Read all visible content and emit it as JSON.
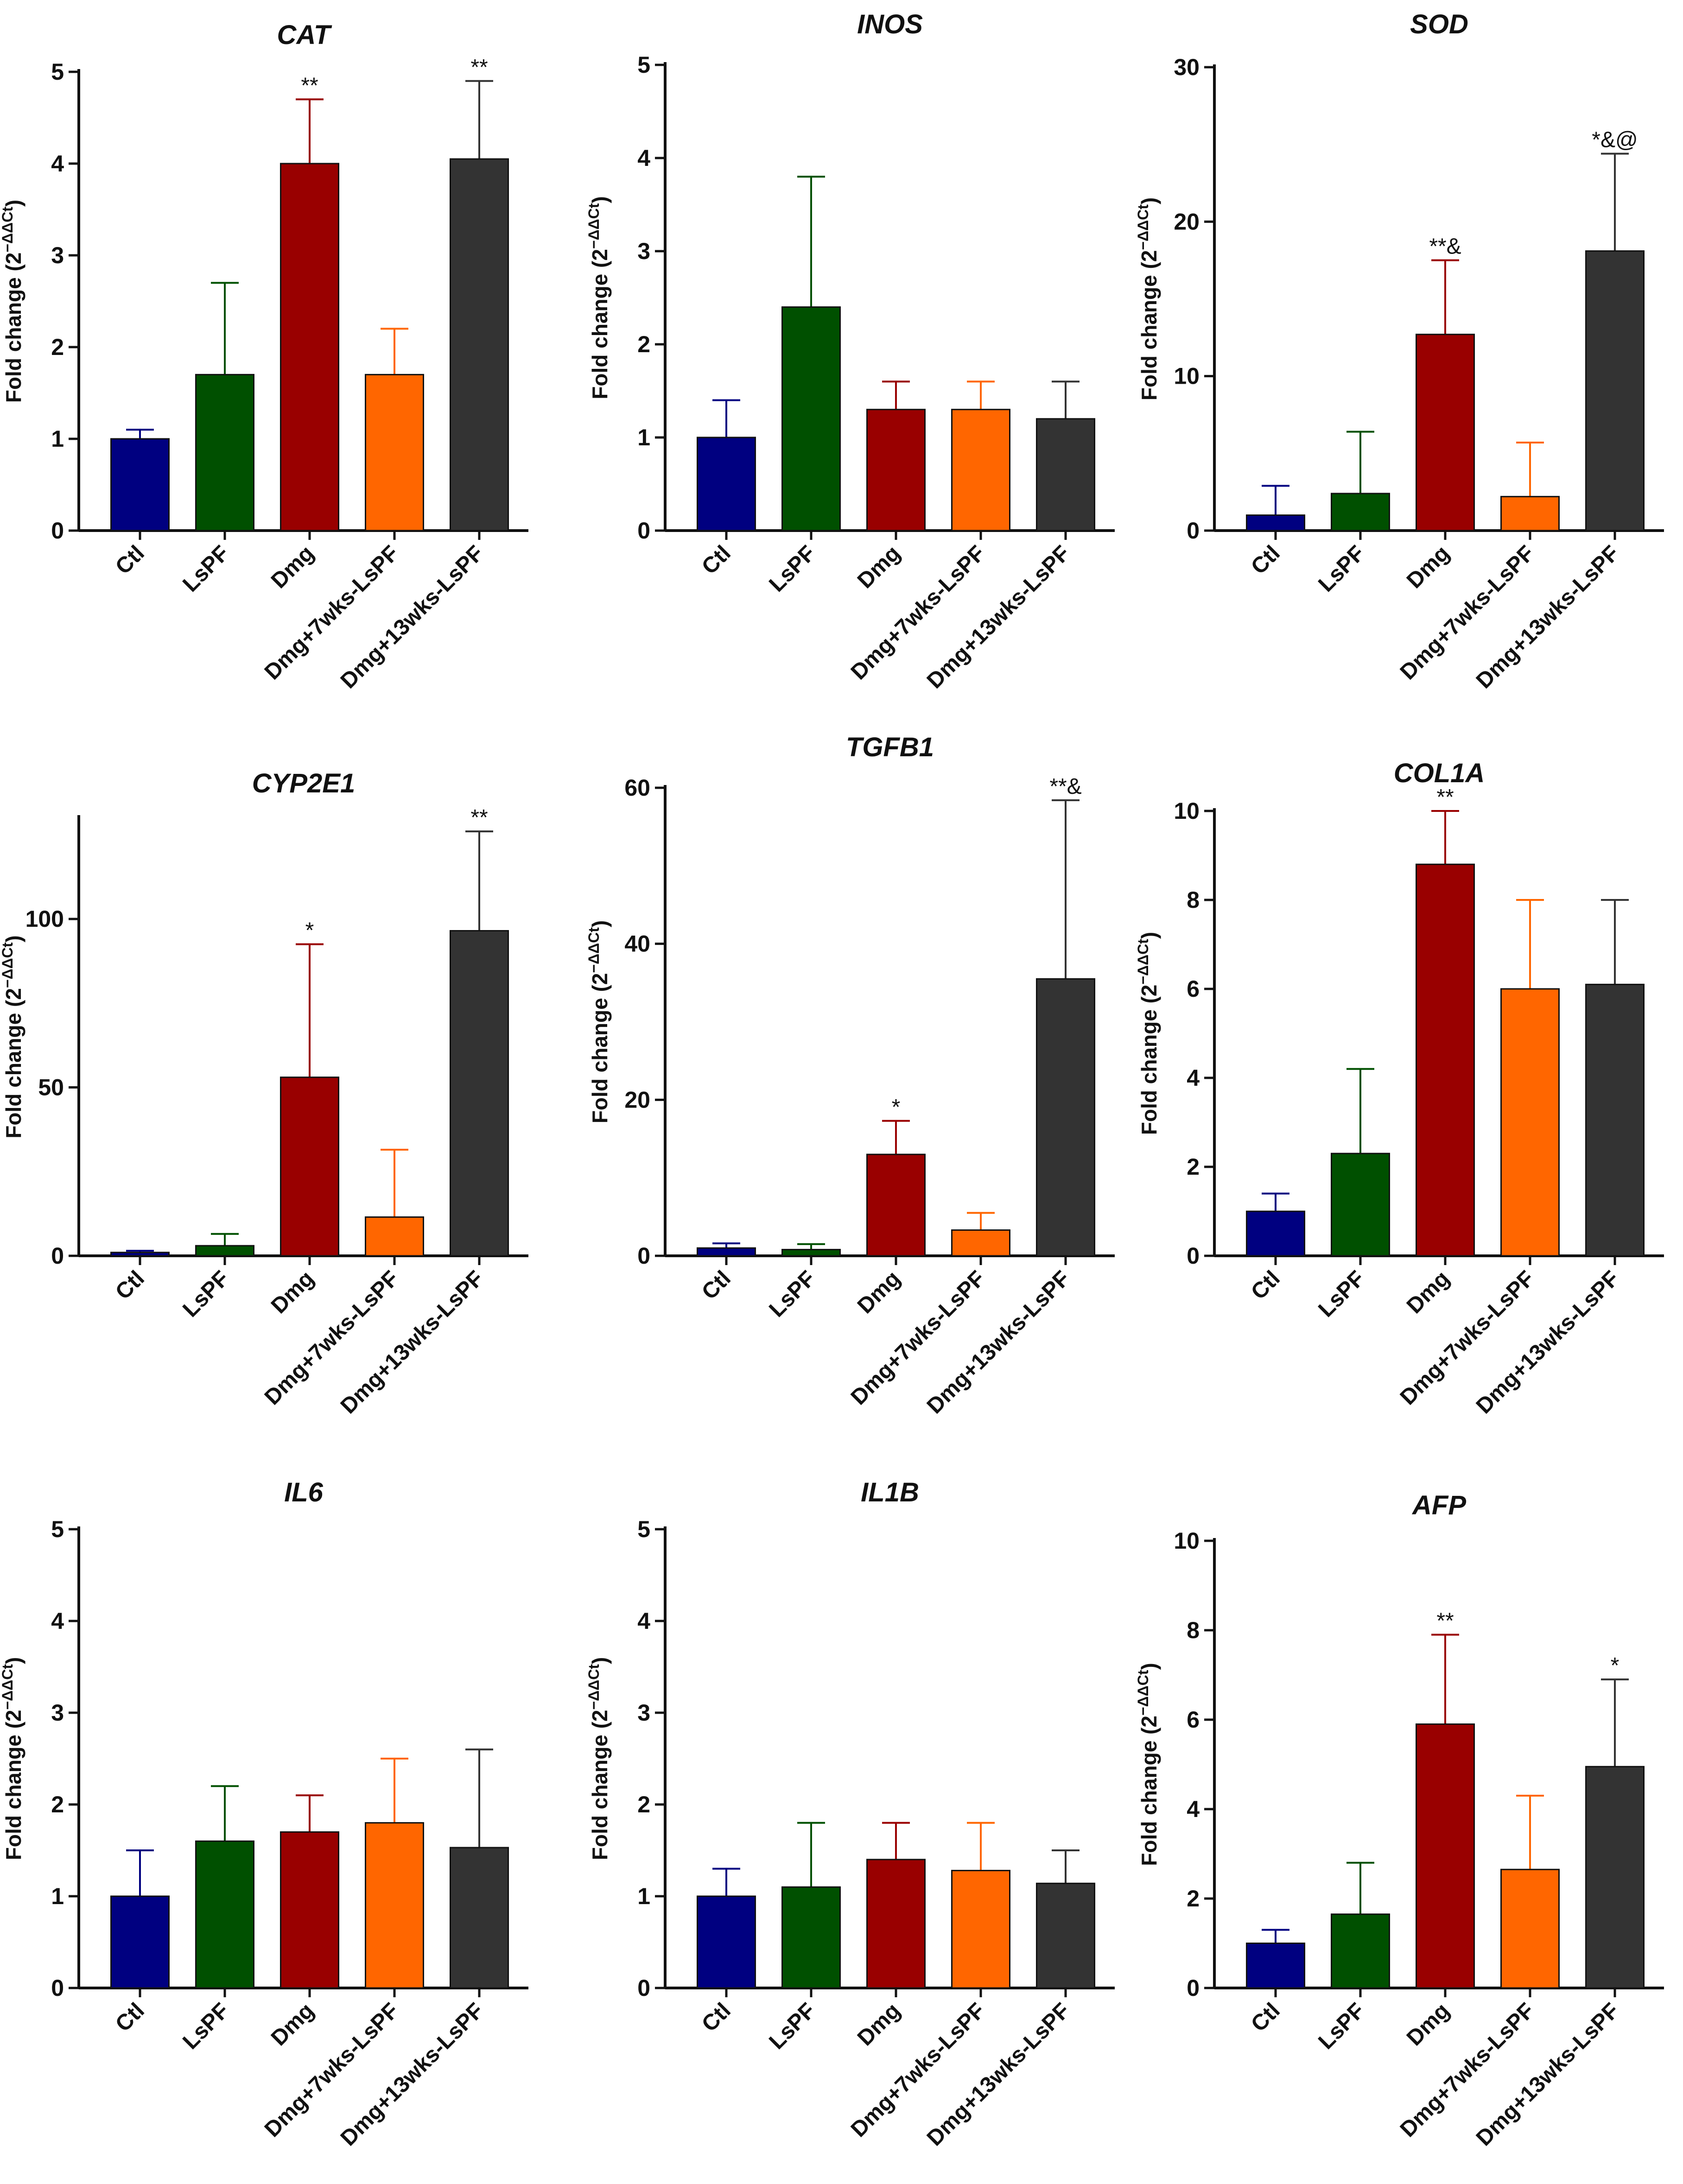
{
  "figure": {
    "y_axis_label": "Fold change (2",
    "y_axis_exponent": "−ΔΔCt",
    "y_axis_label_close": ")"
  },
  "chart_data": [
    {
      "type": "bar",
      "title": "CAT",
      "categories": [
        "Ctl",
        "LsPF",
        "Dmg",
        "Dmg+7wks-LsPF",
        "Dmg+13wks-LsPF"
      ],
      "values": [
        1.0,
        1.7,
        4.0,
        1.7,
        4.05
      ],
      "errors": [
        1.1,
        2.7,
        4.7,
        2.2,
        4.9
      ],
      "annotations": [
        "",
        "",
        "**",
        "",
        "**"
      ],
      "ylim": [
        0,
        5
      ],
      "yticks": [
        "0",
        "1",
        "2",
        "3",
        "4",
        "5"
      ],
      "ylabel": "Fold change (2−ΔΔCt)",
      "colors": [
        "#000080",
        "#005000",
        "#990000",
        "#FF6600",
        "#333333"
      ]
    },
    {
      "type": "bar",
      "title": "INOS",
      "categories": [
        "Ctl",
        "LsPF",
        "Dmg",
        "Dmg+7wks-LsPF",
        "Dmg+13wks-LsPF"
      ],
      "values": [
        1.0,
        2.4,
        1.3,
        1.3,
        1.2
      ],
      "errors": [
        1.4,
        3.8,
        1.6,
        1.6,
        1.6
      ],
      "annotations": [
        "",
        "",
        "",
        "",
        ""
      ],
      "ylim": [
        0,
        5
      ],
      "yticks": [
        "0",
        "1",
        "2",
        "3",
        "4",
        "5"
      ],
      "ylabel": "Fold change (2−ΔΔCt)",
      "colors": [
        "#000080",
        "#005000",
        "#990000",
        "#FF6600",
        "#333333"
      ]
    },
    {
      "type": "bar",
      "title": "SOD",
      "categories": [
        "Ctl",
        "LsPF",
        "Dmg",
        "Dmg+7wks-LsPF",
        "Dmg+13wks-LsPF"
      ],
      "values": [
        1.0,
        2.4,
        12.7,
        2.2,
        18.1
      ],
      "errors": [
        2.9,
        6.4,
        17.5,
        5.7,
        24.4
      ],
      "annotations": [
        "",
        "",
        "**&",
        "",
        "*&@"
      ],
      "ylim": [
        0,
        30
      ],
      "yticks": [
        "0",
        "10",
        "20",
        "30"
      ],
      "ylabel": "Fold change (2−ΔΔCt)",
      "colors": [
        "#000080",
        "#005000",
        "#990000",
        "#FF6600",
        "#333333"
      ]
    },
    {
      "type": "bar",
      "title": "CYP2E1",
      "categories": [
        "Ctl",
        "LsPF",
        "Dmg",
        "Dmg+7wks-LsPF",
        "Dmg+13wks-LsPF"
      ],
      "values": [
        1.0,
        3.0,
        53.0,
        11.5,
        96.5
      ],
      "errors": [
        1.5,
        6.5,
        92.5,
        31.5,
        126.0
      ],
      "annotations": [
        "",
        "",
        "*",
        "",
        "**"
      ],
      "ylim": [
        0,
        130
      ],
      "yticks": [
        "0",
        "50",
        "100"
      ],
      "ylabel": "Fold change (2−ΔΔCt)",
      "colors": [
        "#000080",
        "#005000",
        "#990000",
        "#FF6600",
        "#333333"
      ]
    },
    {
      "type": "bar",
      "title": "TGFB1",
      "categories": [
        "Ctl",
        "LsPF",
        "Dmg",
        "Dmg+7wks-LsPF",
        "Dmg+13wks-LsPF"
      ],
      "values": [
        1.0,
        0.8,
        13.0,
        3.3,
        35.5
      ],
      "errors": [
        1.6,
        1.5,
        17.3,
        5.5,
        58.4
      ],
      "annotations": [
        "",
        "",
        "*",
        "",
        "**&"
      ],
      "ylim": [
        0,
        60
      ],
      "yticks": [
        "0",
        "20",
        "40",
        "60"
      ],
      "ylabel": "Fold change (2−ΔΔCt)",
      "colors": [
        "#000080",
        "#005000",
        "#990000",
        "#FF6600",
        "#333333"
      ]
    },
    {
      "type": "bar",
      "title": "COL1A",
      "categories": [
        "Ctl",
        "LsPF",
        "Dmg",
        "Dmg+7wks-LsPF",
        "Dmg+13wks-LsPF"
      ],
      "values": [
        1.0,
        2.3,
        8.8,
        6.0,
        6.1
      ],
      "errors": [
        1.4,
        4.2,
        10.0,
        8.0,
        8.0
      ],
      "annotations": [
        "",
        "",
        "**",
        "",
        ""
      ],
      "ylim": [
        0,
        10
      ],
      "yticks": [
        "0",
        "2",
        "4",
        "6",
        "8",
        "10"
      ],
      "ylabel": "Fold change (2−ΔΔCt)",
      "colors": [
        "#000080",
        "#005000",
        "#990000",
        "#FF6600",
        "#333333"
      ]
    },
    {
      "type": "bar",
      "title": "IL6",
      "categories": [
        "Ctl",
        "LsPF",
        "Dmg",
        "Dmg+7wks-LsPF",
        "Dmg+13wks-LsPF"
      ],
      "values": [
        1.0,
        1.6,
        1.7,
        1.8,
        1.53
      ],
      "errors": [
        1.5,
        2.2,
        2.1,
        2.5,
        2.6
      ],
      "annotations": [
        "",
        "",
        "",
        "",
        ""
      ],
      "ylim": [
        0,
        5
      ],
      "yticks": [
        "0",
        "1",
        "2",
        "3",
        "4",
        "5"
      ],
      "ylabel": "Fold change (2−ΔΔCt)",
      "colors": [
        "#000080",
        "#005000",
        "#990000",
        "#FF6600",
        "#333333"
      ]
    },
    {
      "type": "bar",
      "title": "IL1B",
      "categories": [
        "Ctl",
        "LsPF",
        "Dmg",
        "Dmg+7wks-LsPF",
        "Dmg+13wks-LsPF"
      ],
      "values": [
        1.0,
        1.1,
        1.4,
        1.28,
        1.14
      ],
      "errors": [
        1.3,
        1.8,
        1.8,
        1.8,
        1.5
      ],
      "annotations": [
        "",
        "",
        "",
        "",
        ""
      ],
      "ylim": [
        0,
        5
      ],
      "yticks": [
        "0",
        "1",
        "2",
        "3",
        "4",
        "5"
      ],
      "ylabel": "Fold change (2−ΔΔCt)",
      "colors": [
        "#000080",
        "#005000",
        "#990000",
        "#FF6600",
        "#333333"
      ]
    },
    {
      "type": "bar",
      "title": "AFP",
      "categories": [
        "Ctl",
        "LsPF",
        "Dmg",
        "Dmg+7wks-LsPF",
        "Dmg+13wks-LsPF"
      ],
      "values": [
        1.0,
        1.65,
        5.9,
        2.65,
        4.95
      ],
      "errors": [
        1.3,
        2.8,
        7.9,
        4.3,
        6.9
      ],
      "annotations": [
        "",
        "",
        "**",
        "",
        "*"
      ],
      "ylim": [
        0,
        10
      ],
      "yticks": [
        "0",
        "2",
        "4",
        "6",
        "8",
        "10"
      ],
      "ylabel": "Fold change (2−ΔΔCt)",
      "colors": [
        "#000080",
        "#005000",
        "#990000",
        "#FF6600",
        "#333333"
      ]
    }
  ]
}
